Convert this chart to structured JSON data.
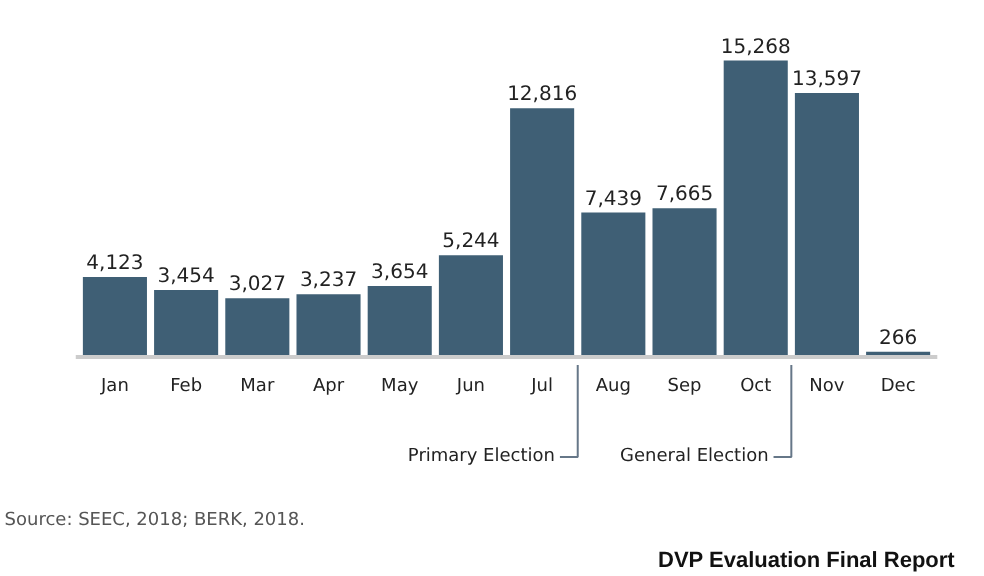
{
  "chart_data": {
    "type": "bar",
    "categories": [
      "Jan",
      "Feb",
      "Mar",
      "Apr",
      "May",
      "Jun",
      "Jul",
      "Aug",
      "Sep",
      "Oct",
      "Nov",
      "Dec"
    ],
    "values": [
      4123,
      3454,
      3027,
      3237,
      3654,
      5244,
      12816,
      7439,
      7665,
      15268,
      13597,
      266
    ],
    "color": "#3f5f75",
    "value_labels": [
      "4,123",
      "3,454",
      "3,027",
      "3,237",
      "3,654",
      "5,244",
      "12,816",
      "7,439",
      "7,665",
      "15,268",
      "13,597",
      "266"
    ],
    "ref_lines": [
      {
        "axis": "x",
        "value": "Aug",
        "label": "Primary Election"
      },
      {
        "axis": "x",
        "value": "Nov",
        "label": "General Election"
      }
    ],
    "annotations": [
      "Source: SEEC, 2018; BERK, 2018.",
      "DVP Evaluation Final Report"
    ]
  }
}
